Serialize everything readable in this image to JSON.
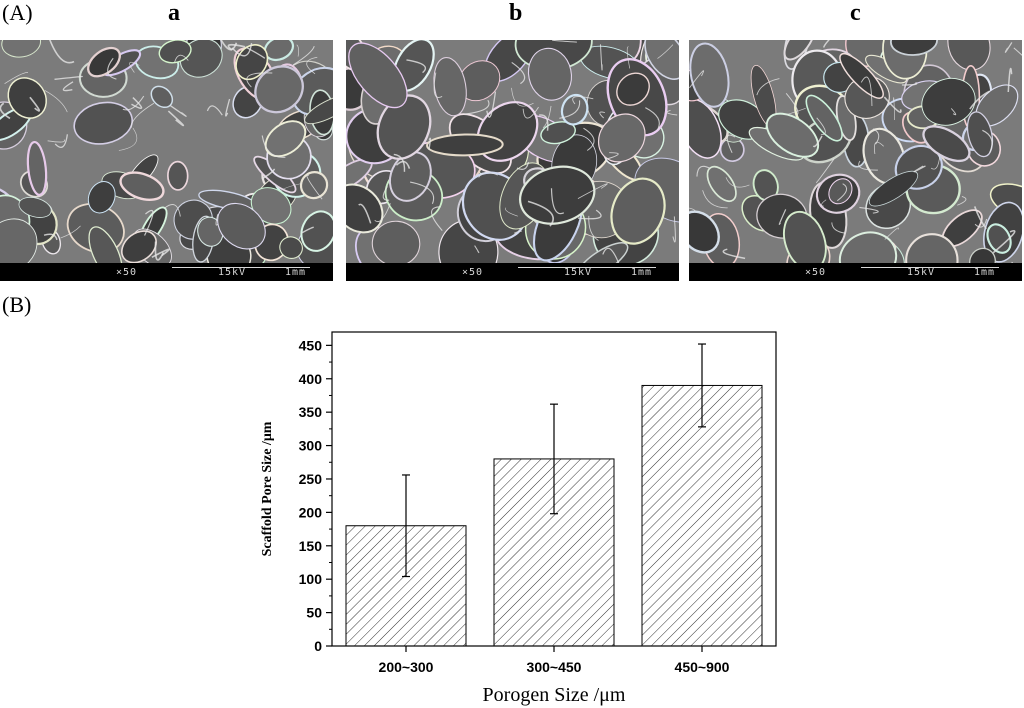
{
  "panel_A_label": "(A)",
  "panel_B_label": "(B)",
  "sem_images": [
    {
      "letter": "a",
      "magnification": "×50",
      "voltage": "15kV",
      "scale": "1mm"
    },
    {
      "letter": "b",
      "magnification": "×50",
      "voltage": "15kV",
      "scale": "1mm"
    },
    {
      "letter": "c",
      "magnification": "×50",
      "voltage": "15kV",
      "scale": "1mm"
    }
  ],
  "chart_data": {
    "type": "bar",
    "categories": [
      "200~300",
      "300~450",
      "450~900"
    ],
    "values": [
      180,
      280,
      390
    ],
    "error": [
      76,
      82,
      62
    ],
    "xlabel": "Porogen Size /μm",
    "ylabel": "Scaffold Pore Size /μm",
    "ylim": [
      0,
      470
    ],
    "yticks": [
      0,
      50,
      100,
      150,
      200,
      250,
      300,
      350,
      400,
      450
    ],
    "fill": "diagonal hatch",
    "grid": false
  }
}
